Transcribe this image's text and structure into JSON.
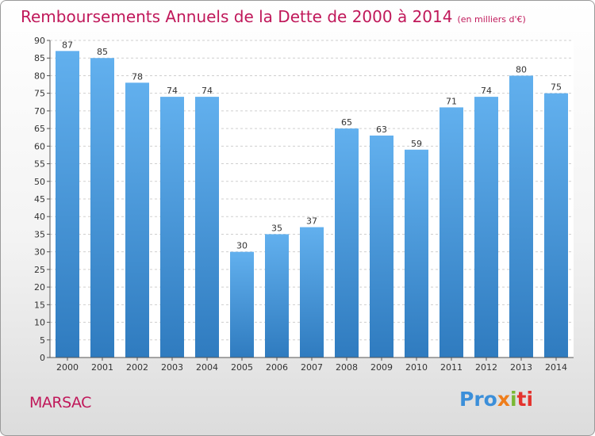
{
  "chart_data": {
    "type": "bar",
    "title": "Remboursements Annuels de la Dette de 2000 à 2014",
    "subtitle": "(en milliers d'€)",
    "categories": [
      "2000",
      "2001",
      "2002",
      "2003",
      "2004",
      "2005",
      "2006",
      "2007",
      "2008",
      "2009",
      "2010",
      "2011",
      "2012",
      "2013",
      "2014"
    ],
    "values": [
      87,
      85,
      78,
      74,
      74,
      30,
      35,
      37,
      65,
      63,
      59,
      71,
      74,
      80,
      75
    ],
    "ylim": [
      0,
      90
    ],
    "ytick_step": 5,
    "grid": true,
    "xlabel": "",
    "ylabel": "",
    "bar_color": "#4a9ee0",
    "bar_color_light": "#62b0ee",
    "bar_color_dark": "#2f7bbf"
  },
  "footer": {
    "city": "MARSAC",
    "logo": [
      "Pro",
      "x",
      "i",
      "ti"
    ]
  }
}
